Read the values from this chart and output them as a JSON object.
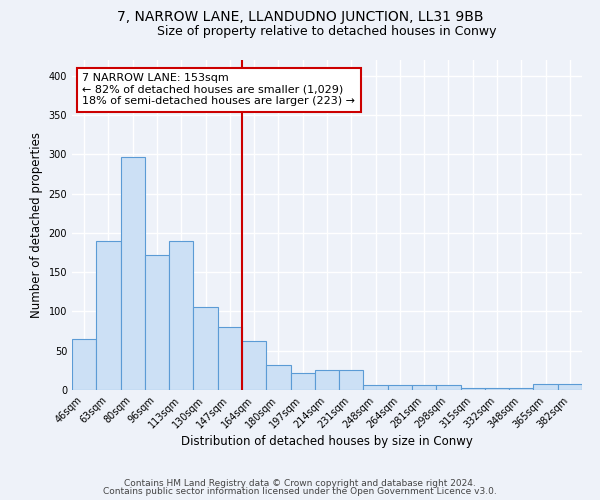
{
  "title": "7, NARROW LANE, LLANDUDNO JUNCTION, LL31 9BB",
  "subtitle": "Size of property relative to detached houses in Conwy",
  "xlabel": "Distribution of detached houses by size in Conwy",
  "ylabel": "Number of detached properties",
  "bar_labels": [
    "46sqm",
    "63sqm",
    "80sqm",
    "96sqm",
    "113sqm",
    "130sqm",
    "147sqm",
    "164sqm",
    "180sqm",
    "197sqm",
    "214sqm",
    "231sqm",
    "248sqm",
    "264sqm",
    "281sqm",
    "298sqm",
    "315sqm",
    "332sqm",
    "348sqm",
    "365sqm",
    "382sqm"
  ],
  "bar_values": [
    65,
    190,
    297,
    172,
    190,
    106,
    80,
    62,
    32,
    22,
    25,
    25,
    7,
    7,
    7,
    7,
    2,
    2,
    2,
    8,
    8
  ],
  "bar_color": "#cce0f5",
  "bar_edge_color": "#5b9bd5",
  "vline_color": "#cc0000",
  "annotation_text": "7 NARROW LANE: 153sqm\n← 82% of detached houses are smaller (1,029)\n18% of semi-detached houses are larger (223) →",
  "annotation_box_color": "#ffffff",
  "annotation_box_edge": "#cc0000",
  "ylim": [
    0,
    420
  ],
  "yticks": [
    0,
    50,
    100,
    150,
    200,
    250,
    300,
    350,
    400
  ],
  "footer_line1": "Contains HM Land Registry data © Crown copyright and database right 2024.",
  "footer_line2": "Contains public sector information licensed under the Open Government Licence v3.0.",
  "bg_color": "#eef2f9",
  "plot_bg_color": "#eef2f9",
  "title_fontsize": 10,
  "subtitle_fontsize": 9,
  "axis_label_fontsize": 8.5,
  "tick_fontsize": 7,
  "footer_fontsize": 6.5,
  "annotation_fontsize": 8
}
